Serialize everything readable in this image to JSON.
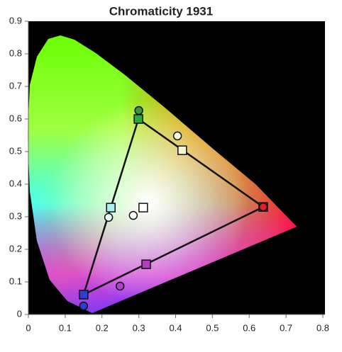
{
  "chart_data": {
    "type": "scatter",
    "title": "Chromaticity 1931",
    "xlim": [
      0,
      0.8
    ],
    "ylim": [
      0,
      0.9
    ],
    "xticks": [
      0,
      0.1,
      0.2,
      0.3,
      0.4,
      0.5,
      0.6,
      0.7,
      0.8
    ],
    "yticks": [
      0,
      0.1,
      0.2,
      0.3,
      0.4,
      0.5,
      0.6,
      0.7,
      0.8,
      0.9
    ],
    "grid": false,
    "series": [
      {
        "marker": "square",
        "x": [
          0.638,
          0.299,
          0.15,
          0.224,
          0.32,
          0.418,
          0.312
        ],
        "y": [
          0.33,
          0.6,
          0.061,
          0.328,
          0.154,
          0.504,
          0.328
        ],
        "colors": [
          "#e0202a",
          "#2fa83a",
          "#2c3fd0",
          "#a8f0ee",
          "#b03cc0",
          "#f6f6d0",
          "#ffffff"
        ]
      },
      {
        "marker": "circle",
        "x": [
          0.638,
          0.3,
          0.15,
          0.218,
          0.249,
          0.405,
          0.285
        ],
        "y": [
          0.33,
          0.626,
          0.026,
          0.298,
          0.087,
          0.548,
          0.304
        ],
        "colors": [
          "#e0202a",
          "#3a9a3a",
          "#2c3fd0",
          "#e8fff8",
          "#b040d0",
          "#fafad8",
          "#ffffff"
        ]
      }
    ]
  }
}
